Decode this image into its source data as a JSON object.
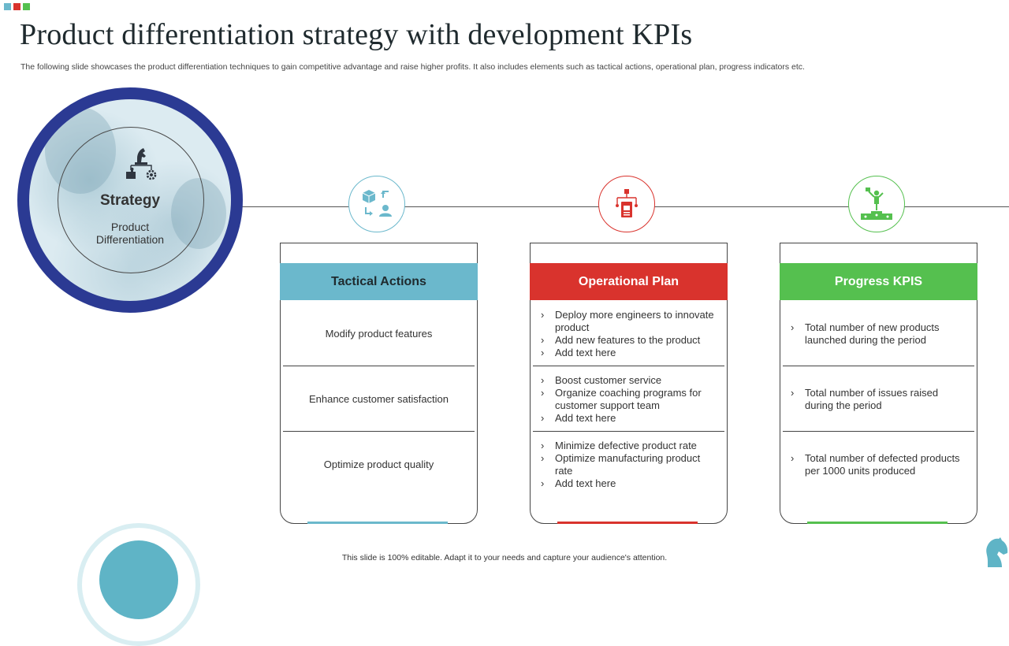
{
  "title": "Product differentiation strategy with development KPIs",
  "subtitle": "The following slide showcases the product differentiation techniques to gain competitive advantage and raise higher profits. It also includes elements such as tactical actions, operational plan, progress indicators etc.",
  "colors": {
    "teal": "#6bb8cc",
    "red": "#d9332d",
    "green": "#55c04f",
    "navy": "#2b3a93",
    "corner_squares": [
      "#6bb8cc",
      "#d9332d",
      "#55c04f"
    ]
  },
  "strategy": {
    "title": "Strategy",
    "subtitle": "Product Differentiation",
    "icon": "chess-knight-puzzle-gear-icon"
  },
  "columns": [
    {
      "header": "Tactical Actions",
      "icon": "box-user-cycle-icon",
      "rows": [
        "Modify product features",
        "Enhance customer satisfaction",
        "Optimize product quality"
      ]
    },
    {
      "header": "Operational Plan",
      "icon": "flowchart-document-icon",
      "rows": [
        [
          "Deploy more engineers to innovate  product",
          "Add new features to the product",
          "Add text here"
        ],
        [
          "Boost customer service",
          "Organize coaching programs for customer support team",
          "Add text here"
        ],
        [
          "Minimize defective  product rate",
          "Optimize manufacturing product rate",
          "Add text here"
        ]
      ]
    },
    {
      "header": "Progress KPIS",
      "icon": "winner-podium-icon",
      "rows": [
        [
          "Total number of new products launched during the period"
        ],
        [
          "Total number of issues raised during the period"
        ],
        [
          "Total number of defected products per 1000 units produced"
        ]
      ]
    }
  ],
  "footer": "This slide is 100% editable.  Adapt it to your needs and capture your audience's attention."
}
